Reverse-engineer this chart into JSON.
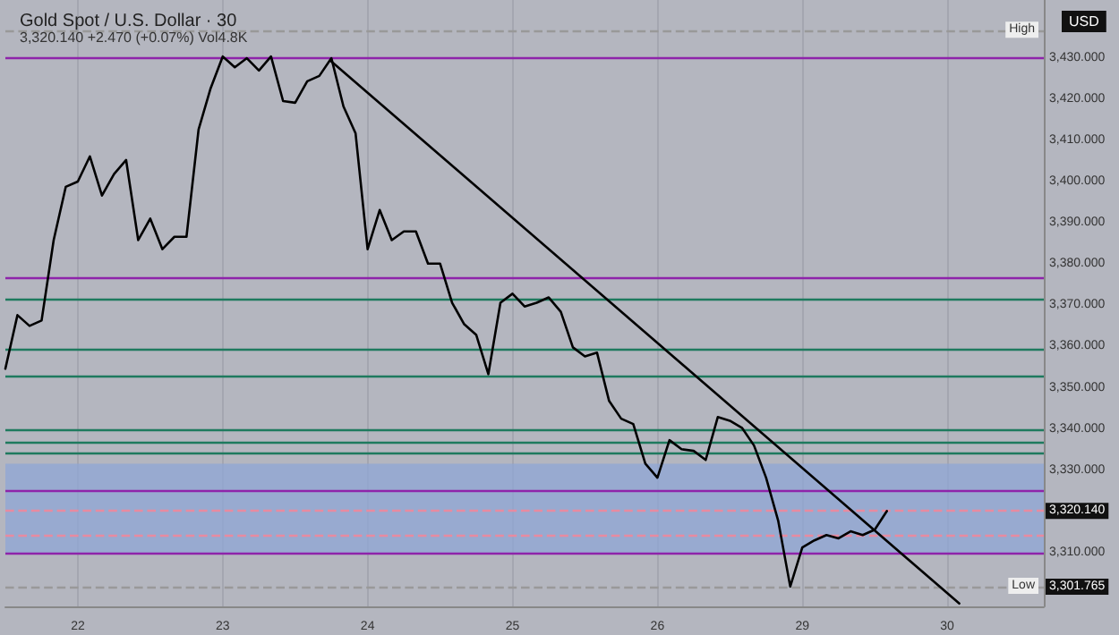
{
  "chart_data": {
    "type": "line",
    "title": "Gold Spot / U.S. Dollar · 30",
    "subtitle": "3,320.140 +2.470 (+0.07%) Vol4.8K",
    "categories": [
      null,
      null,
      null,
      null,
      null,
      null,
      "22",
      null,
      null,
      null,
      null,
      null,
      null,
      null,
      null,
      null,
      null,
      null,
      "23",
      null,
      null,
      null,
      null,
      null,
      null,
      null,
      null,
      null,
      null,
      null,
      "24",
      null,
      null,
      null,
      null,
      null,
      null,
      null,
      null,
      null,
      null,
      null,
      "25",
      null,
      null,
      null,
      null,
      null,
      null,
      null,
      null,
      null,
      null,
      null,
      "26",
      null,
      null,
      null,
      null,
      null,
      null,
      null,
      null,
      null,
      null,
      null,
      "29",
      null,
      null,
      null,
      null,
      null,
      null,
      null,
      null,
      null,
      null,
      null,
      "30",
      null,
      null,
      null,
      null,
      null,
      null,
      null,
      null
    ],
    "ylim": [
      3297,
      3444
    ],
    "yticks": [
      {
        "value": 3310,
        "label": "3,310.000"
      },
      {
        "value": 3330,
        "label": "3,330.000"
      },
      {
        "value": 3340,
        "label": "3,340.000"
      },
      {
        "value": 3350,
        "label": "3,350.000"
      },
      {
        "value": 3360,
        "label": "3,360.000"
      },
      {
        "value": 3370,
        "label": "3,370.000"
      },
      {
        "value": 3380,
        "label": "3,380.000"
      },
      {
        "value": 3390,
        "label": "3,390.000"
      },
      {
        "value": 3400,
        "label": "3,400.000"
      },
      {
        "value": 3410,
        "label": "3,410.000"
      },
      {
        "value": 3420,
        "label": "3,420.000"
      },
      {
        "value": 3430,
        "label": "3,430.000"
      }
    ],
    "grid": "x",
    "marker": "none",
    "line_style": "solid",
    "series": [
      {
        "color": "#000000",
        "values": [
          3354.6,
          3367.6,
          3365.0,
          3366.3,
          3385.8,
          3398.7,
          3400.0,
          3406.1,
          3396.6,
          3401.8,
          3405.2,
          3385.8,
          3391.0,
          3383.6,
          3386.6,
          3386.6,
          3412.6,
          3422.6,
          3430.3,
          3427.7,
          3429.9,
          3426.9,
          3430.3,
          3419.5,
          3419.1,
          3424.3,
          3425.6,
          3429.9,
          3418.2,
          3411.7,
          3383.6,
          3393.1,
          3385.8,
          3387.9,
          3387.9,
          3380.1,
          3380.1,
          3370.6,
          3365.4,
          3362.8,
          3353.3,
          3370.6,
          3372.8,
          3369.7,
          3370.6,
          3371.9,
          3368.4,
          3359.8,
          3357.6,
          3358.5,
          3346.8,
          3342.5,
          3341.2,
          3331.6,
          3328.2,
          3337.3,
          3335.1,
          3334.7,
          3332.5,
          3342.9,
          3342.0,
          3340.3,
          3336.0,
          3328.2,
          3317.8,
          3301.8,
          3311.3,
          3313.0,
          3314.3,
          3313.5,
          3315.2,
          3314.3,
          3315.6,
          3320.1,
          null,
          null,
          null,
          null,
          null,
          null,
          null,
          null,
          null,
          null,
          null,
          null,
          null
        ]
      },
      {
        "type": "line",
        "color": "#000000",
        "values": [
          null,
          null,
          null,
          null,
          null,
          null,
          null,
          null,
          null,
          null,
          null,
          null,
          null,
          null,
          null,
          null,
          null,
          null,
          null,
          null,
          null,
          null,
          null,
          null,
          null,
          null,
          null,
          3429.1,
          null,
          null,
          null,
          null,
          null,
          null,
          null,
          null,
          null,
          null,
          null,
          null,
          null,
          null,
          null,
          null,
          null,
          null,
          null,
          null,
          null,
          null,
          null,
          null,
          null,
          null,
          null,
          null,
          null,
          null,
          null,
          null,
          null,
          null,
          null,
          null,
          null,
          null,
          null,
          null,
          null,
          null,
          null,
          null,
          null,
          null,
          null,
          null,
          null,
          null,
          null,
          3297.7,
          null,
          null,
          null,
          null,
          null,
          null,
          null
        ]
      }
    ],
    "ref_lines": [
      {
        "axis": "y",
        "value": 3430,
        "label": null,
        "color": "#8e24aa"
      },
      {
        "axis": "y",
        "value": 3376.7,
        "label": null,
        "color": "#8e24aa"
      },
      {
        "axis": "y",
        "value": 3371.5,
        "label": null,
        "color": "#1e7a5e"
      },
      {
        "axis": "y",
        "value": 3359.4,
        "label": null,
        "color": "#1e7a5e"
      },
      {
        "axis": "y",
        "value": 3352.9,
        "label": null,
        "color": "#1e7a5e"
      },
      {
        "axis": "y",
        "value": 3339.9,
        "label": null,
        "color": "#1e7a5e"
      },
      {
        "axis": "y",
        "value": 3336.8,
        "label": null,
        "color": "#1e7a5e"
      },
      {
        "axis": "y",
        "value": 3334.2,
        "label": null,
        "color": "#1e7a5e"
      },
      {
        "axis": "y",
        "value": 3325.2,
        "label": null,
        "color": "#8e24aa"
      },
      {
        "axis": "y",
        "value": 3310,
        "label": null,
        "color": "#8e24aa"
      },
      {
        "axis": "y",
        "value": 3320.14,
        "label": "3,320.140",
        "color": "#e88aa0",
        "line_style": "dashed"
      },
      {
        "axis": "y",
        "value": 3314.3,
        "label": null,
        "color": "#e88aa0",
        "line_style": "dashed"
      },
      {
        "axis": "y",
        "value": 3301.765,
        "label": "3,301.765",
        "color": "#999999",
        "line_style": "dashed"
      },
      {
        "axis": "y",
        "value": 3436.6,
        "label": null,
        "color": "#999999",
        "line_style": "dashed"
      }
    ],
    "bands": [
      {
        "axis": "y",
        "from": 3310,
        "to": 3331.6,
        "label": null,
        "color": "#8fa6d6"
      }
    ],
    "annotations": [
      {
        "text": "High",
        "y": 3436.6
      },
      {
        "text": "Low",
        "y": 3301.765
      },
      "USD"
    ]
  }
}
